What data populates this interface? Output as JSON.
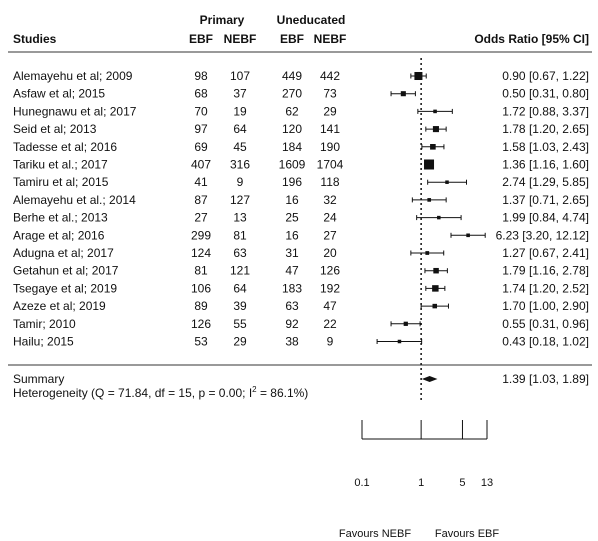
{
  "chart_data": {
    "type": "forest",
    "header": {
      "studies": "Studies",
      "group_primary": "Primary",
      "group_uneducated": "Uneducated",
      "col_ebf_1": "EBF",
      "col_nebf_1": "NEBF",
      "col_ebf_2": "EBF",
      "col_nebf_2": "NEBF",
      "effect": "Odds Ratio [95% CI]"
    },
    "studies": [
      {
        "name": "Alemayehu et al; 2009",
        "p_ebf": 98,
        "p_nebf": 107,
        "u_ebf": 449,
        "u_nebf": 442,
        "or": 0.9,
        "lo": 0.67,
        "hi": 1.22,
        "label": "0.90 [0.67, 1.22]"
      },
      {
        "name": "Asfaw et al; 2015",
        "p_ebf": 68,
        "p_nebf": 37,
        "u_ebf": 270,
        "u_nebf": 73,
        "or": 0.5,
        "lo": 0.31,
        "hi": 0.8,
        "label": "0.50 [0.31, 0.80]"
      },
      {
        "name": "Hunegnawu et al; 2017",
        "p_ebf": 70,
        "p_nebf": 19,
        "u_ebf": 62,
        "u_nebf": 29,
        "or": 1.72,
        "lo": 0.88,
        "hi": 3.37,
        "label": "1.72 [0.88, 3.37]"
      },
      {
        "name": "Seid et al; 2013",
        "p_ebf": 97,
        "p_nebf": 64,
        "u_ebf": 120,
        "u_nebf": 141,
        "or": 1.78,
        "lo": 1.2,
        "hi": 2.65,
        "label": "1.78 [1.20, 2.65]"
      },
      {
        "name": "Tadesse et al; 2016",
        "p_ebf": 69,
        "p_nebf": 45,
        "u_ebf": 184,
        "u_nebf": 190,
        "or": 1.58,
        "lo": 1.03,
        "hi": 2.43,
        "label": "1.58 [1.03, 2.43]"
      },
      {
        "name": "Tariku et al.; 2017",
        "p_ebf": 407,
        "p_nebf": 316,
        "u_ebf": 1609,
        "u_nebf": 1704,
        "or": 1.36,
        "lo": 1.16,
        "hi": 1.6,
        "label": "1.36 [1.16, 1.60]"
      },
      {
        "name": "Tamiru et al; 2015",
        "p_ebf": 41,
        "p_nebf": 9,
        "u_ebf": 196,
        "u_nebf": 118,
        "or": 2.74,
        "lo": 1.29,
        "hi": 5.85,
        "label": "2.74 [1.29, 5.85]"
      },
      {
        "name": "Alemayehu et al.; 2014",
        "p_ebf": 87,
        "p_nebf": 127,
        "u_ebf": 16,
        "u_nebf": 32,
        "or": 1.37,
        "lo": 0.71,
        "hi": 2.65,
        "label": "1.37 [0.71, 2.65]"
      },
      {
        "name": "Berhe et al.; 2013",
        "p_ebf": 27,
        "p_nebf": 13,
        "u_ebf": 25,
        "u_nebf": 24,
        "or": 1.99,
        "lo": 0.84,
        "hi": 4.74,
        "label": "1.99 [0.84, 4.74]"
      },
      {
        "name": "Arage et al; 2016",
        "p_ebf": 299,
        "p_nebf": 81,
        "u_ebf": 16,
        "u_nebf": 27,
        "or": 6.23,
        "lo": 3.2,
        "hi": 12.12,
        "label": "6.23 [3.20, 12.12]"
      },
      {
        "name": "Adugna et al; 2017",
        "p_ebf": 124,
        "p_nebf": 63,
        "u_ebf": 31,
        "u_nebf": 20,
        "or": 1.27,
        "lo": 0.67,
        "hi": 2.41,
        "label": "1.27 [0.67, 2.41]"
      },
      {
        "name": "Getahun et al; 2017",
        "p_ebf": 81,
        "p_nebf": 121,
        "u_ebf": 47,
        "u_nebf": 126,
        "or": 1.79,
        "lo": 1.16,
        "hi": 2.78,
        "label": "1.79 [1.16, 2.78]"
      },
      {
        "name": "Tsegaye et al; 2019",
        "p_ebf": 106,
        "p_nebf": 64,
        "u_ebf": 183,
        "u_nebf": 192,
        "or": 1.74,
        "lo": 1.2,
        "hi": 2.52,
        "label": "1.74 [1.20, 2.52]"
      },
      {
        "name": "Azeze et al; 2019",
        "p_ebf": 89,
        "p_nebf": 39,
        "u_ebf": 63,
        "u_nebf": 47,
        "or": 1.7,
        "lo": 1.0,
        "hi": 2.9,
        "label": "1.70 [1.00, 2.90]"
      },
      {
        "name": "Tamir; 2010",
        "p_ebf": 126,
        "p_nebf": 55,
        "u_ebf": 92,
        "u_nebf": 22,
        "or": 0.55,
        "lo": 0.31,
        "hi": 0.96,
        "label": "0.55 [0.31, 0.96]"
      },
      {
        "name": "Hailu; 2015",
        "p_ebf": 53,
        "p_nebf": 29,
        "u_ebf": 38,
        "u_nebf": 9,
        "or": 0.43,
        "lo": 0.18,
        "hi": 1.02,
        "label": "0.43 [0.18, 1.02]"
      }
    ],
    "summary": {
      "name": "Summary",
      "heterogeneity_prefix": "Heterogeneity (Q = 71.84, df = 15, p = 0.00; I",
      "heterogeneity_sup": "2",
      "heterogeneity_suffix": " = 86.1%)",
      "or": 1.39,
      "lo": 1.03,
      "hi": 1.89,
      "label": "1.39 [1.03, 1.89]"
    },
    "x_axis": {
      "scale": "log",
      "ticks": [
        0.1,
        1,
        5,
        13
      ],
      "tick_labels": [
        "0.1",
        "1",
        "5",
        "13"
      ]
    },
    "reference_line": 1,
    "favours_left": "Favours NEBF",
    "favours_right": "Favours EBF"
  }
}
